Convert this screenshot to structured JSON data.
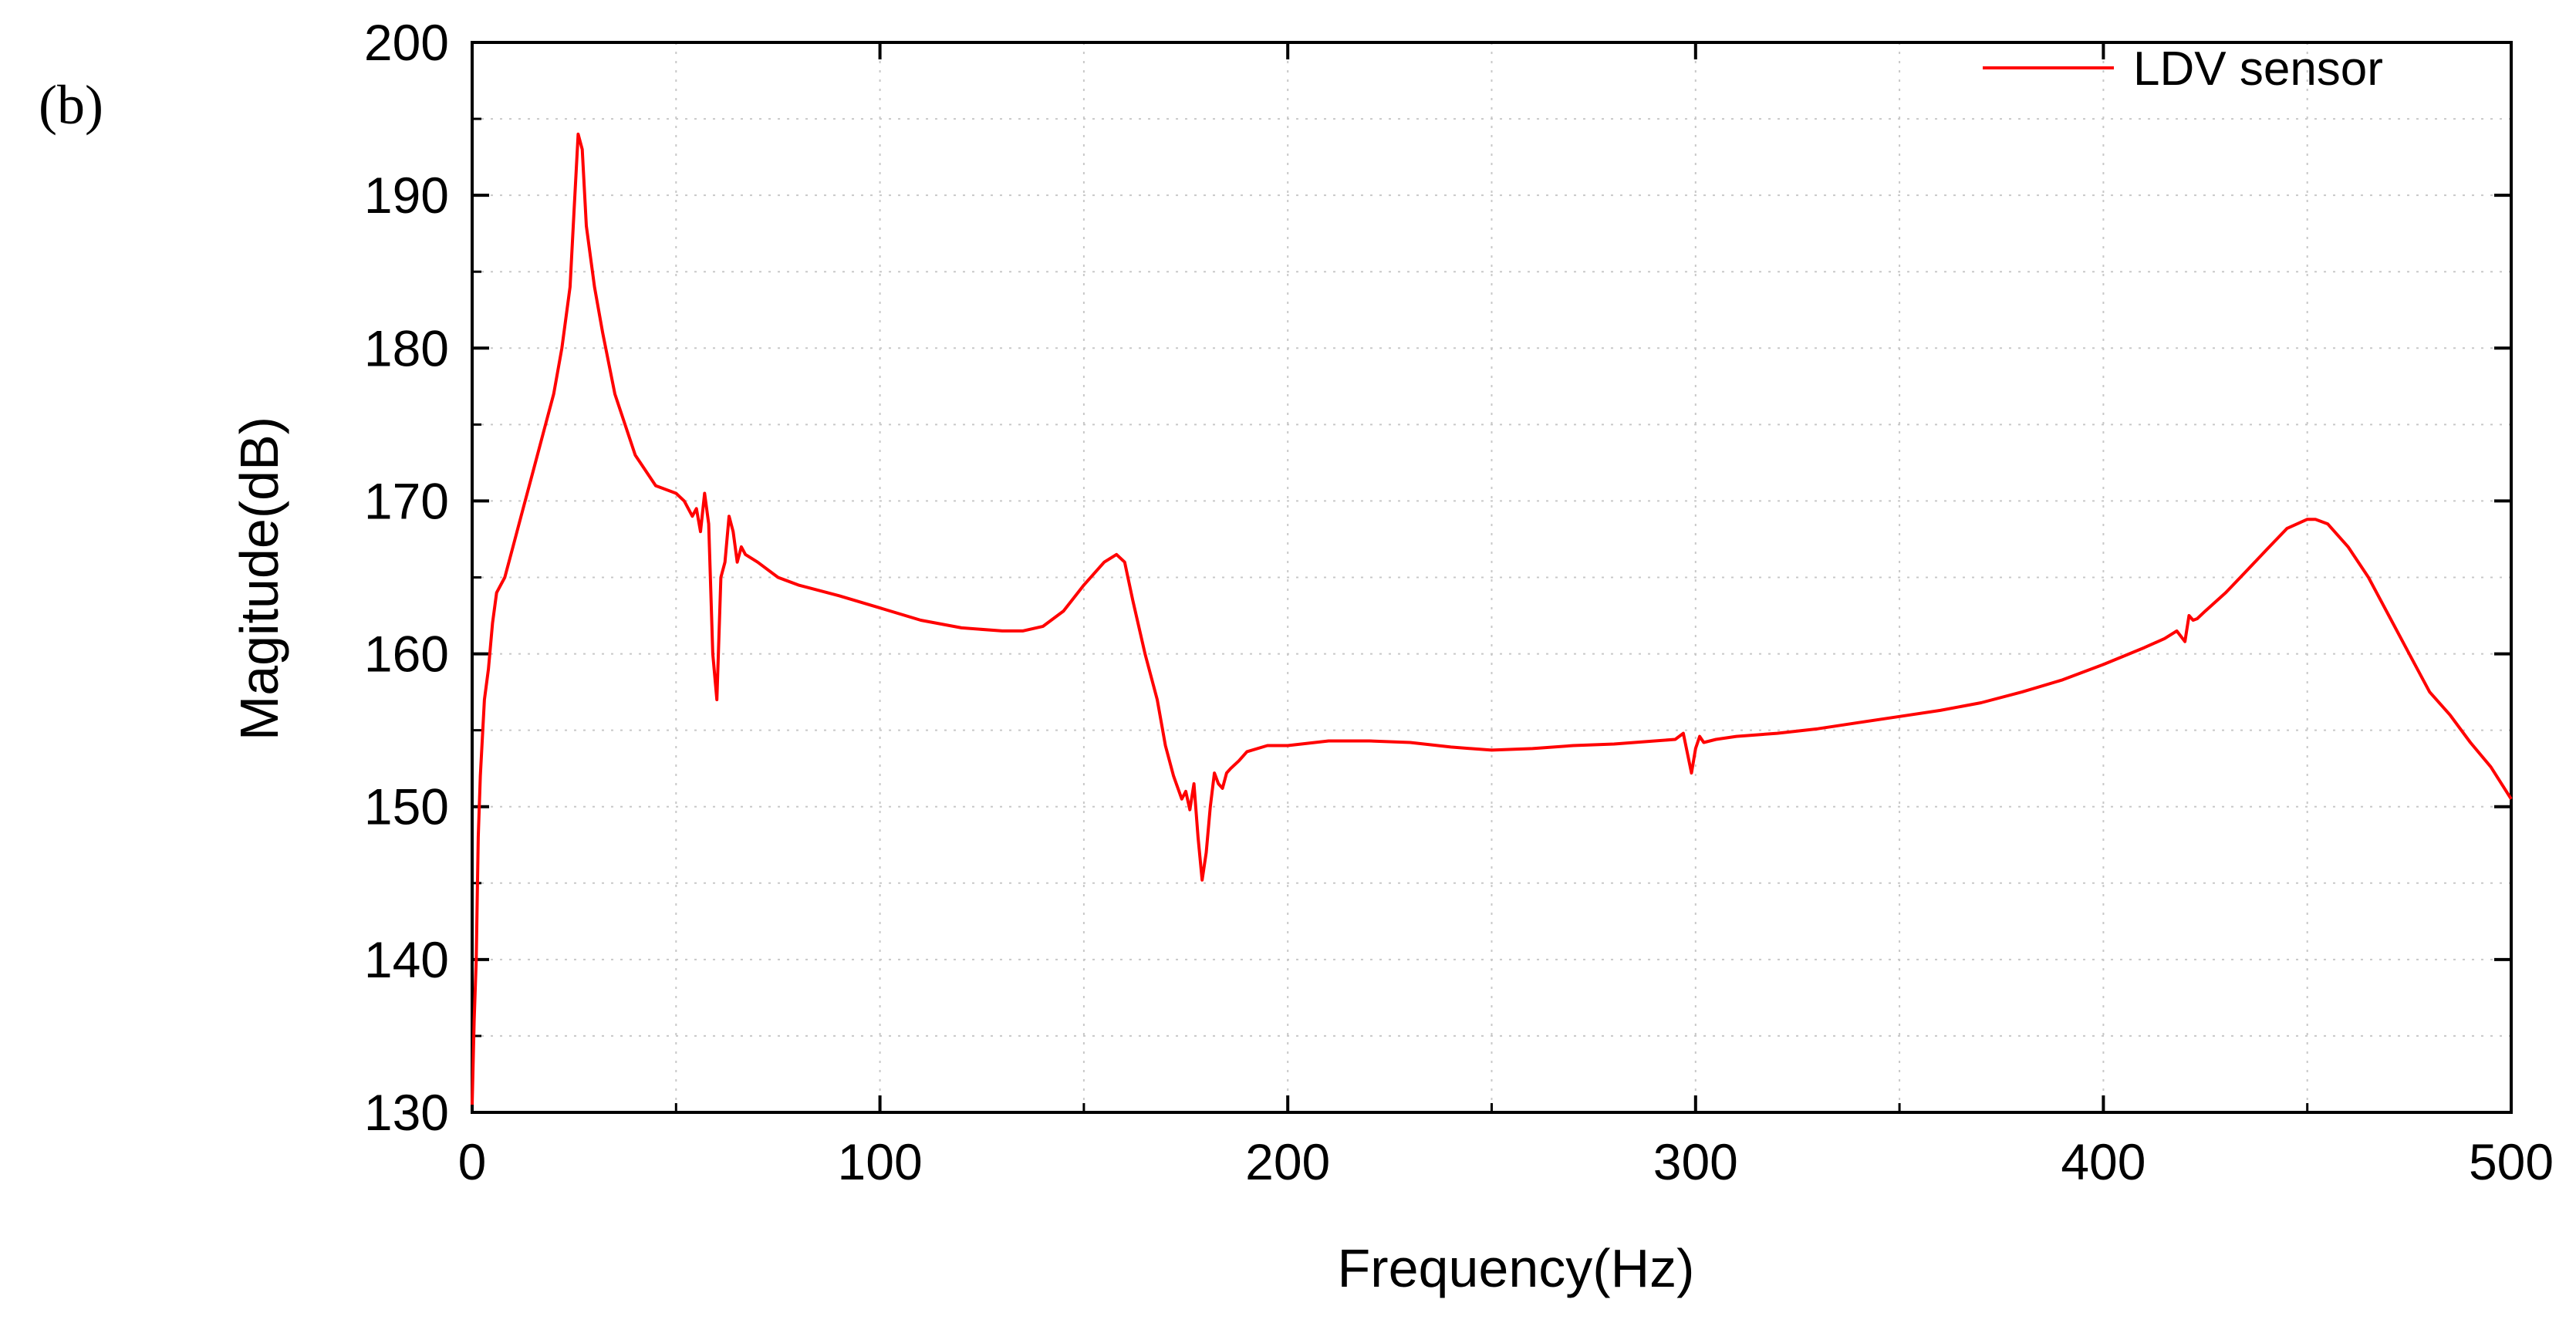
{
  "panel_label": "(b)",
  "chart_data": {
    "type": "line",
    "xlabel": "Frequency(Hz)",
    "ylabel": "Magitude(dB)",
    "xlim": [
      0,
      500
    ],
    "ylim": [
      130,
      200
    ],
    "xticks": [
      0,
      100,
      200,
      300,
      400,
      500
    ],
    "yticks": [
      130,
      140,
      150,
      160,
      170,
      180,
      190,
      200
    ],
    "grid": true,
    "legend_position": "top-right",
    "series": [
      {
        "name": "LDV sensor",
        "color": "#ff0000",
        "x": [
          0,
          0.5,
          1,
          1.5,
          2,
          3,
          4,
          5,
          6,
          8,
          10,
          12,
          15,
          18,
          20,
          22,
          24,
          25,
          26,
          27,
          28,
          30,
          32,
          35,
          40,
          45,
          50,
          52,
          54,
          55,
          56,
          57,
          58,
          59,
          60,
          61,
          62,
          63,
          64,
          65,
          66,
          67,
          70,
          75,
          80,
          90,
          100,
          110,
          120,
          130,
          135,
          140,
          145,
          150,
          155,
          158,
          160,
          162,
          165,
          168,
          170,
          172,
          174,
          175,
          176,
          177,
          178,
          179,
          180,
          181,
          182,
          183,
          184,
          185,
          186,
          188,
          190,
          195,
          200,
          210,
          220,
          230,
          240,
          250,
          260,
          270,
          280,
          290,
          295,
          297,
          298,
          299,
          300,
          301,
          302,
          305,
          310,
          320,
          330,
          340,
          350,
          360,
          370,
          380,
          390,
          400,
          410,
          415,
          418,
          420,
          421,
          422,
          423,
          425,
          430,
          435,
          440,
          445,
          450,
          452,
          455,
          460,
          465,
          470,
          475,
          480,
          485,
          490,
          495,
          500
        ],
        "values": [
          130.5,
          136,
          140,
          148,
          152,
          157,
          159,
          162,
          164,
          165,
          167,
          169,
          172,
          175,
          177,
          180,
          184,
          189,
          194,
          193,
          188,
          184,
          181,
          177,
          173,
          171,
          170.5,
          170,
          169,
          169.5,
          168,
          170.5,
          168.5,
          160,
          157,
          165,
          166,
          169,
          168,
          166,
          167,
          166.5,
          166,
          165,
          164.5,
          163.8,
          163,
          162.2,
          161.7,
          161.5,
          161.5,
          161.8,
          162.8,
          164.5,
          166,
          166.5,
          166,
          163.5,
          160,
          157,
          154,
          152,
          150.5,
          151,
          149.8,
          151.5,
          148,
          145.2,
          147,
          150,
          152.2,
          151.5,
          151.2,
          152.2,
          152.5,
          153,
          153.6,
          154,
          154,
          154.3,
          154.3,
          154.2,
          153.9,
          153.7,
          153.8,
          154,
          154.1,
          154.3,
          154.4,
          154.8,
          153.5,
          152.2,
          153.8,
          154.6,
          154.2,
          154.4,
          154.6,
          154.8,
          155.1,
          155.5,
          155.9,
          156.3,
          156.8,
          157.5,
          158.3,
          159.3,
          160.4,
          161,
          161.5,
          160.8,
          162.5,
          162.2,
          162.3,
          162.8,
          164,
          165.4,
          166.8,
          168.2,
          168.8,
          168.8,
          168.5,
          167,
          165,
          162.5,
          160,
          157.5,
          156,
          154.2,
          152.6,
          150.5
        ]
      }
    ]
  }
}
